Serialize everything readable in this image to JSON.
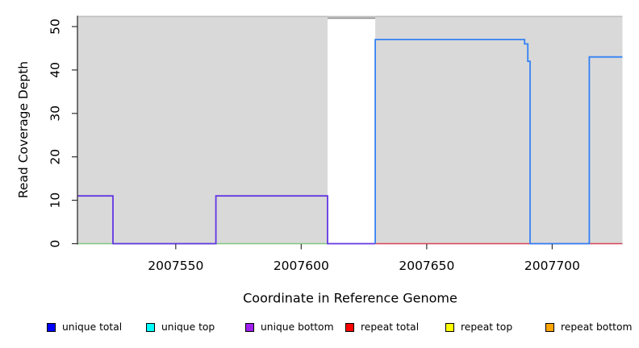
{
  "chart_data": {
    "type": "line",
    "subtype": "genome-coverage-step-plot",
    "title": "",
    "xlabel": "Coordinate in Reference Genome",
    "ylabel": "Read Coverage Depth",
    "xlim": [
      2007511,
      2007728
    ],
    "ylim": [
      0,
      52.5
    ],
    "x_tick_values": [
      2007550,
      2007600,
      2007650,
      2007700
    ],
    "x_tick_labels": [
      "2007550",
      "2007600",
      "2007650",
      "2007700"
    ],
    "y_tick_values": [
      0,
      10,
      20,
      30,
      40,
      50
    ],
    "y_tick_labels": [
      "0",
      "10",
      "20",
      "30",
      "40",
      "50"
    ],
    "grid": "off",
    "legend_position": "bottom",
    "background_regions": [
      {
        "name": "shaded-region-left",
        "x1": 2007511,
        "x2": 2007610.5,
        "fill": "#d9d9d9"
      },
      {
        "name": "shaded-region-right",
        "x1": 2007629.5,
        "x2": 2007728,
        "fill": "#d9d9d9"
      }
    ],
    "overlay_lines": [
      {
        "name": "region-top-border",
        "x1": 2007511,
        "x2": 2007728,
        "y": 52.32,
        "color": "#c0c0c0",
        "width": 1.5
      },
      {
        "name": "gap-top-segment",
        "x1": 2007610.5,
        "x2": 2007629.5,
        "y": 51.95,
        "color": "#8e8e8e",
        "width": 1.8
      }
    ],
    "series": [
      {
        "name": "zero baseline left (green)",
        "color": "#82c882",
        "width": 1.5,
        "points": [
          [
            2007511,
            0
          ],
          [
            2007610.5,
            0
          ]
        ]
      },
      {
        "name": "repeat total baseline (red)",
        "color": "#d64258",
        "width": 1.5,
        "points": [
          [
            2007629.5,
            0
          ],
          [
            2007728,
            0
          ]
        ]
      },
      {
        "name": "unique coverage left blocks (violet)",
        "color": "#6236e3",
        "width": 1.8,
        "points": [
          [
            2007511,
            11
          ],
          [
            2007525,
            11
          ],
          [
            2007525,
            0
          ],
          [
            2007566,
            0
          ],
          [
            2007566,
            11
          ],
          [
            2007610.5,
            11
          ],
          [
            2007610.5,
            0
          ],
          [
            2007629.5,
            0
          ]
        ]
      },
      {
        "name": "unique total coverage right blocks (blue)",
        "color": "#3381f5",
        "width": 1.8,
        "points": [
          [
            2007629.5,
            0
          ],
          [
            2007629.5,
            47
          ],
          [
            2007689,
            47
          ],
          [
            2007689,
            46
          ],
          [
            2007690.3,
            46
          ],
          [
            2007690.3,
            42
          ],
          [
            2007691.2,
            42
          ],
          [
            2007691.2,
            0
          ],
          [
            2007714.8,
            0
          ],
          [
            2007714.8,
            43
          ],
          [
            2007728,
            43
          ]
        ]
      }
    ],
    "legend": [
      {
        "label": "unique total",
        "color": "#0000ff"
      },
      {
        "label": "unique top",
        "color": "#00ffff"
      },
      {
        "label": "unique bottom",
        "color": "#a020f0"
      },
      {
        "label": "repeat total",
        "color": "#ff0000"
      },
      {
        "label": "repeat top",
        "color": "#ffff00"
      },
      {
        "label": "repeat bottom",
        "color": "#ffa500"
      }
    ]
  },
  "style_colors": {
    "axis": "#2f2f2f",
    "text": "#000000",
    "plot_background": "#ffffff"
  }
}
